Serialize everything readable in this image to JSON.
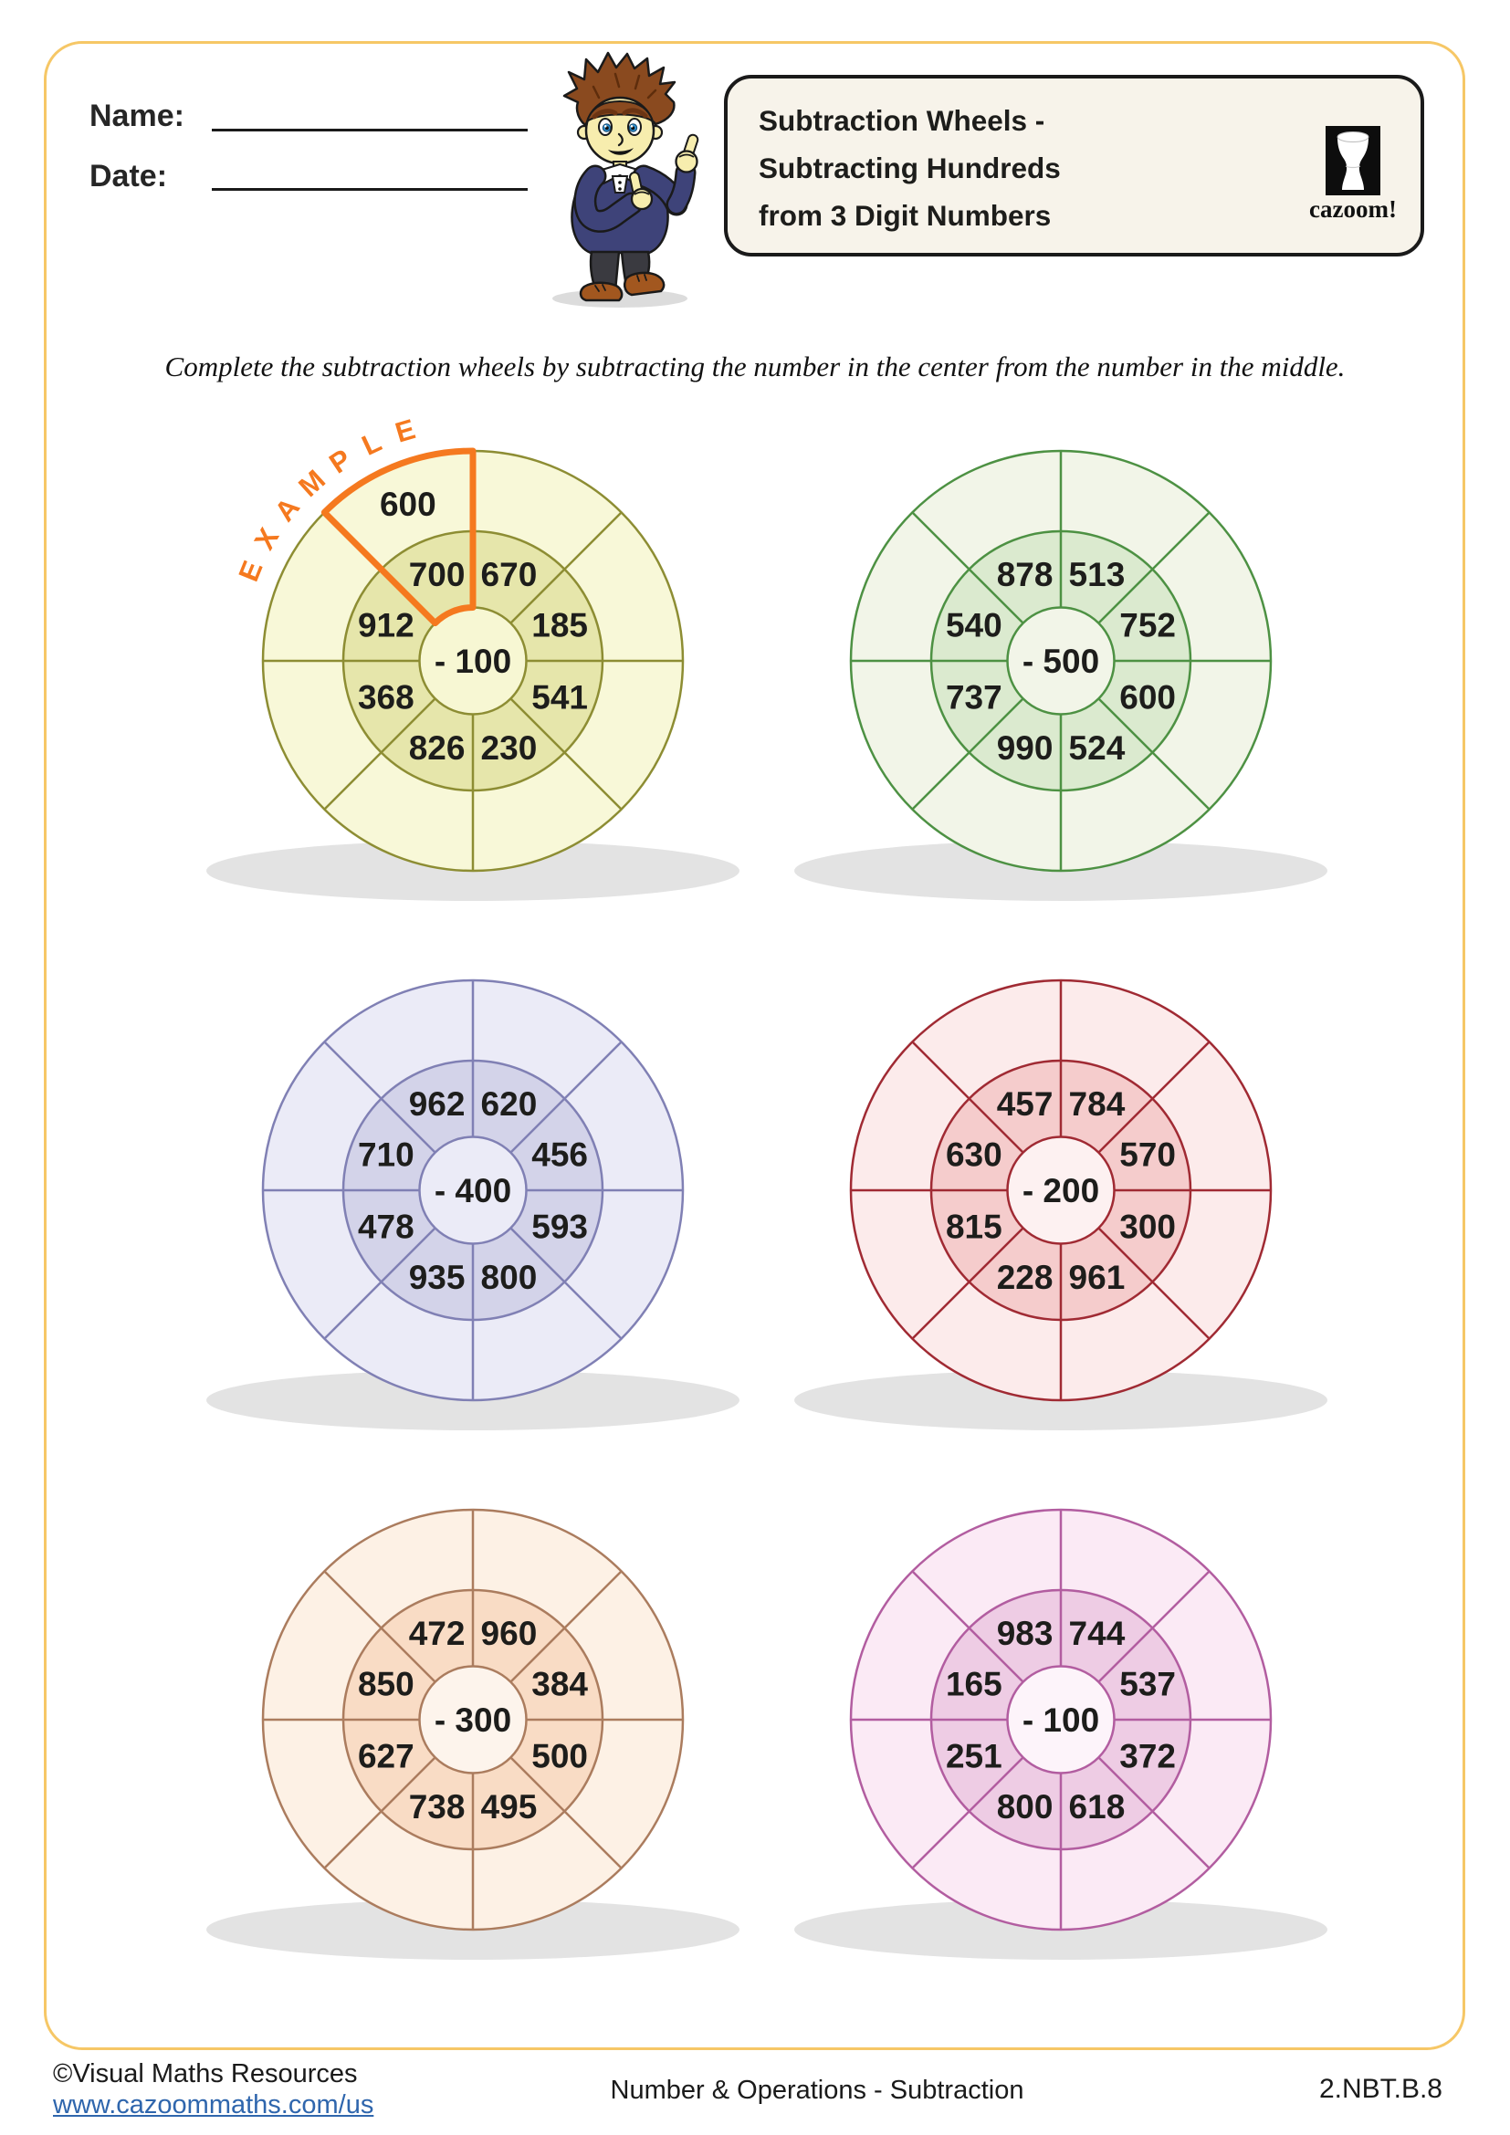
{
  "header": {
    "name_label": "Name:",
    "date_label": "Date:",
    "title_lines": [
      "Subtraction Wheels -",
      "Subtracting Hundreds",
      "from 3 Digit Numbers"
    ],
    "brand": "cazoom!"
  },
  "instruction": "Complete the subtraction wheels by subtracting the number in the center from the number in the middle.",
  "shadow_color": "#e3e3e3",
  "accent_orange": "#f5791f",
  "page_border_color": "#f6c766",
  "wheels": [
    {
      "label": "wheel-yellow",
      "center_label": "- 100",
      "colors": {
        "stroke": "#8d8d33",
        "outer": "#f8f8d8",
        "inner": "#e6e6ab",
        "hub": "#f7f7d3"
      },
      "values": [
        "670",
        "185",
        "541",
        "230",
        "826",
        "368",
        "912",
        "700"
      ],
      "outer_values": [
        "",
        "",
        "",
        "",
        "",
        "",
        "",
        "600"
      ],
      "example": {
        "label": "EXAMPLE",
        "sector": 7,
        "color": "#f5791f"
      }
    },
    {
      "label": "wheel-green",
      "center_label": "- 500",
      "colors": {
        "stroke": "#4d9143",
        "outer": "#f2f5e8",
        "inner": "#dbeacf",
        "hub": "#f2f5e8"
      },
      "values": [
        "513",
        "752",
        "600",
        "524",
        "990",
        "737",
        "540",
        "878"
      ]
    },
    {
      "label": "wheel-lavender",
      "center_label": "- 400",
      "colors": {
        "stroke": "#8080b4",
        "outer": "#ebebf7",
        "inner": "#d3d3e9",
        "hub": "#ebebf7"
      },
      "values": [
        "620",
        "456",
        "593",
        "800",
        "935",
        "478",
        "710",
        "962"
      ]
    },
    {
      "label": "wheel-red",
      "center_label": "- 200",
      "colors": {
        "stroke": "#a02a33",
        "outer": "#fcebeb",
        "inner": "#f5cccc",
        "hub": "#fdf1f1"
      },
      "values": [
        "784",
        "570",
        "300",
        "961",
        "228",
        "815",
        "630",
        "457"
      ]
    },
    {
      "label": "wheel-peach",
      "center_label": "- 300",
      "colors": {
        "stroke": "#ab7c5e",
        "outer": "#fdf1e5",
        "inner": "#f9dcc5",
        "hub": "#fdf4ec"
      },
      "values": [
        "960",
        "384",
        "500",
        "495",
        "738",
        "627",
        "850",
        "472"
      ]
    },
    {
      "label": "wheel-pink",
      "center_label": "- 100",
      "colors": {
        "stroke": "#b25da0",
        "outer": "#fbeaf5",
        "inner": "#eecce4",
        "hub": "#fdf4fa"
      },
      "values": [
        "744",
        "537",
        "372",
        "618",
        "800",
        "251",
        "165",
        "983"
      ]
    }
  ],
  "footer": {
    "copyright": "©Visual Maths Resources",
    "link": "www.cazoommaths.com/us",
    "center": "Number & Operations - Subtraction",
    "standard": "2.NBT.B.8"
  }
}
